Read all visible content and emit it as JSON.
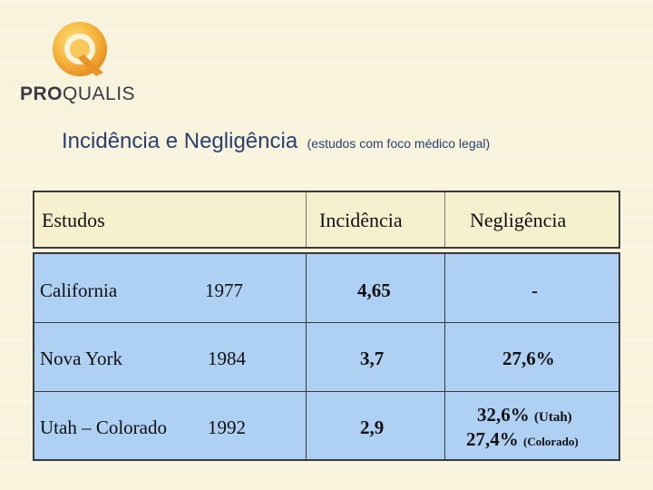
{
  "logo": {
    "brand_prefix": "PRO",
    "brand_suffix": "QUALIS",
    "mark_letter": "Q"
  },
  "title": {
    "main": "Incidência e Negligência",
    "sub": "(estudos com foco médico legal)"
  },
  "table": {
    "headers": {
      "studies": "Estudos",
      "incidence": "Incidência",
      "negligence": "Negligência"
    },
    "rows": [
      {
        "study": "California",
        "year": "1977",
        "incidence": "4,65",
        "negligence": "-"
      },
      {
        "study": "Nova York",
        "year": "1984",
        "incidence": "3,7",
        "negligence": "27,6%"
      },
      {
        "study": "Utah – Colorado",
        "year": "1992",
        "incidence": "2,9",
        "negligence_line1_value": "32,6%",
        "negligence_line1_label": "(Utah)",
        "negligence_line2_value": "27,4%",
        "negligence_line2_label": "(Colorado)"
      }
    ]
  }
}
